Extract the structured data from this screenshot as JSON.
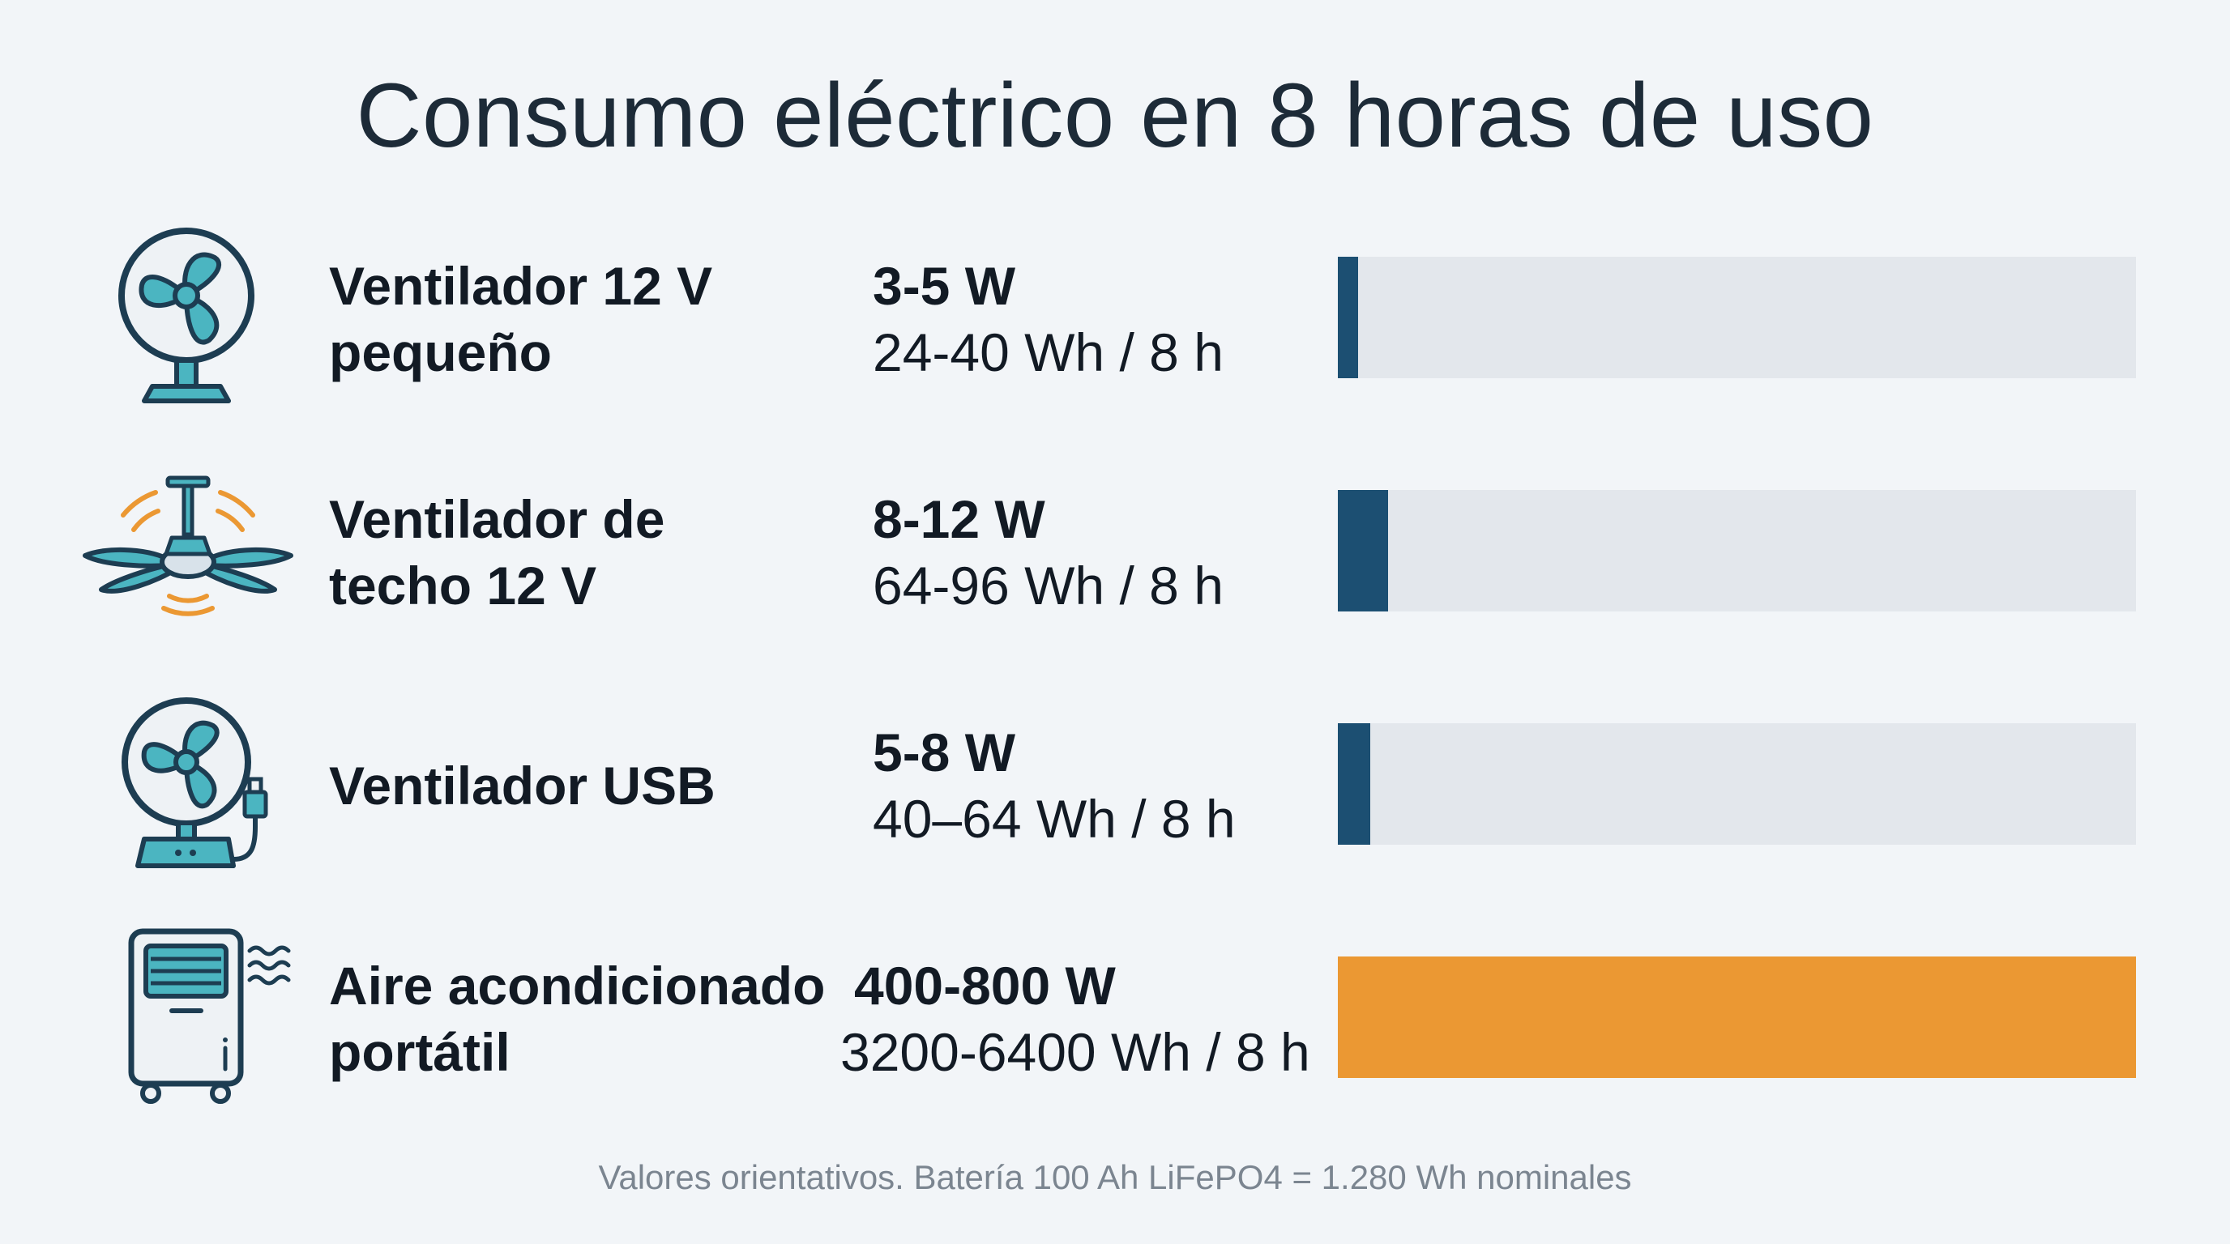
{
  "chart_data": {
    "type": "bar",
    "orientation": "horizontal",
    "title": "Consumo eléctrico en 8 horas de uso",
    "categories": [
      {
        "line1": "Ventilador 12 V",
        "line2": "pequeño",
        "watts": "3-5 W",
        "wh": "24-40 Wh / 8 h",
        "icon": "desk-fan-icon",
        "value": 32,
        "color": "#1c4f72"
      },
      {
        "line1": "Ventilador de",
        "line2": "techo 12 V",
        "watts": "8-12 W",
        "wh": "64-96 Wh / 8 h",
        "icon": "ceiling-fan-icon",
        "value": 80,
        "color": "#1c4f72"
      },
      {
        "line1": "Ventilador USB",
        "line2": "",
        "watts": "5-8 W",
        "wh": "40–64 Wh / 8 h",
        "icon": "usb-fan-icon",
        "value": 52,
        "color": "#1c4f72"
      },
      {
        "line1": "Aire acondicionado",
        "line2": "portátil",
        "watts": "400-800 W",
        "wh": "3200-6400 Wh / 8 h",
        "icon": "portable-ac-icon",
        "value": 1280,
        "color": "#eb9833"
      }
    ],
    "value_max": 1280,
    "footnote": "Valores orientativos. Batería 100 Ah LiFePO4 = 1.280 Wh nominales",
    "legend": "none",
    "grid": false
  }
}
